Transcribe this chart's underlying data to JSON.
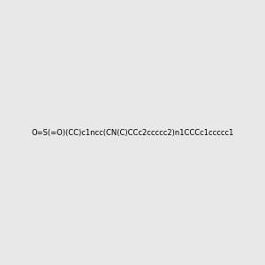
{
  "smiles": "O=S(=O)(CC)c1ncc(CN(C)CCc2ccccc2)n1CCCc1ccccc1",
  "title": "",
  "background_color": "#e8e8e8",
  "img_size": [
    300,
    300
  ]
}
